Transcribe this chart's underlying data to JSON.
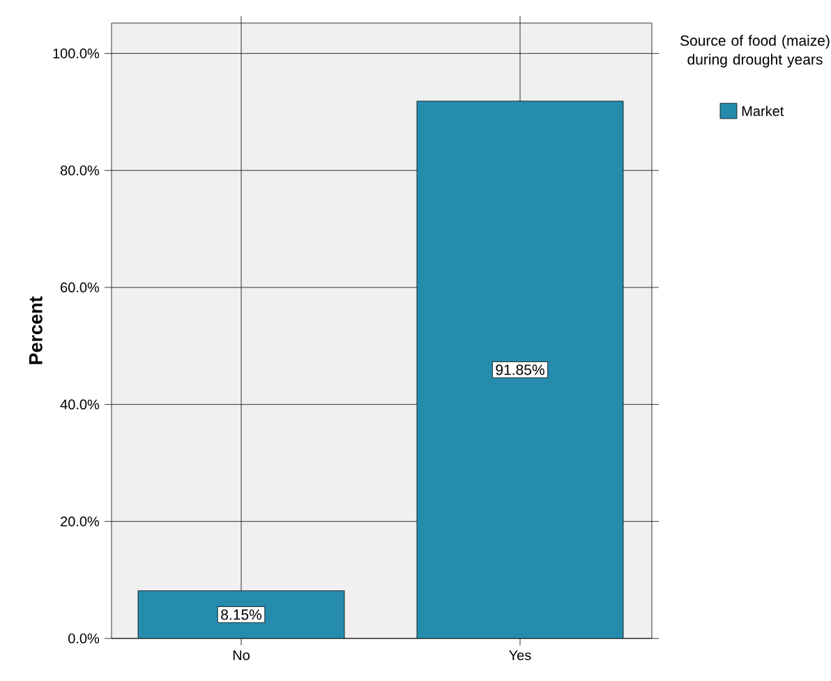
{
  "chart_data": {
    "type": "bar",
    "categories": [
      "No",
      "Yes"
    ],
    "series": [
      {
        "name": "Market",
        "color": "#268cad",
        "values": [
          8.15,
          91.85
        ],
        "value_labels": [
          "8.15%",
          "91.85%"
        ]
      }
    ],
    "ylabel": "Percent",
    "legend_title": "Source of food (maize) during drought years",
    "ylim": [
      0,
      105.2
    ],
    "yticks": [
      {
        "value": 0,
        "label": "0.0%"
      },
      {
        "value": 20,
        "label": "20.0%"
      },
      {
        "value": 40,
        "label": "40.0%"
      },
      {
        "value": 60,
        "label": "60.0%"
      },
      {
        "value": 80,
        "label": "80.0%"
      },
      {
        "value": 100,
        "label": "100.0%"
      }
    ],
    "grid": true,
    "legend": "top right"
  }
}
